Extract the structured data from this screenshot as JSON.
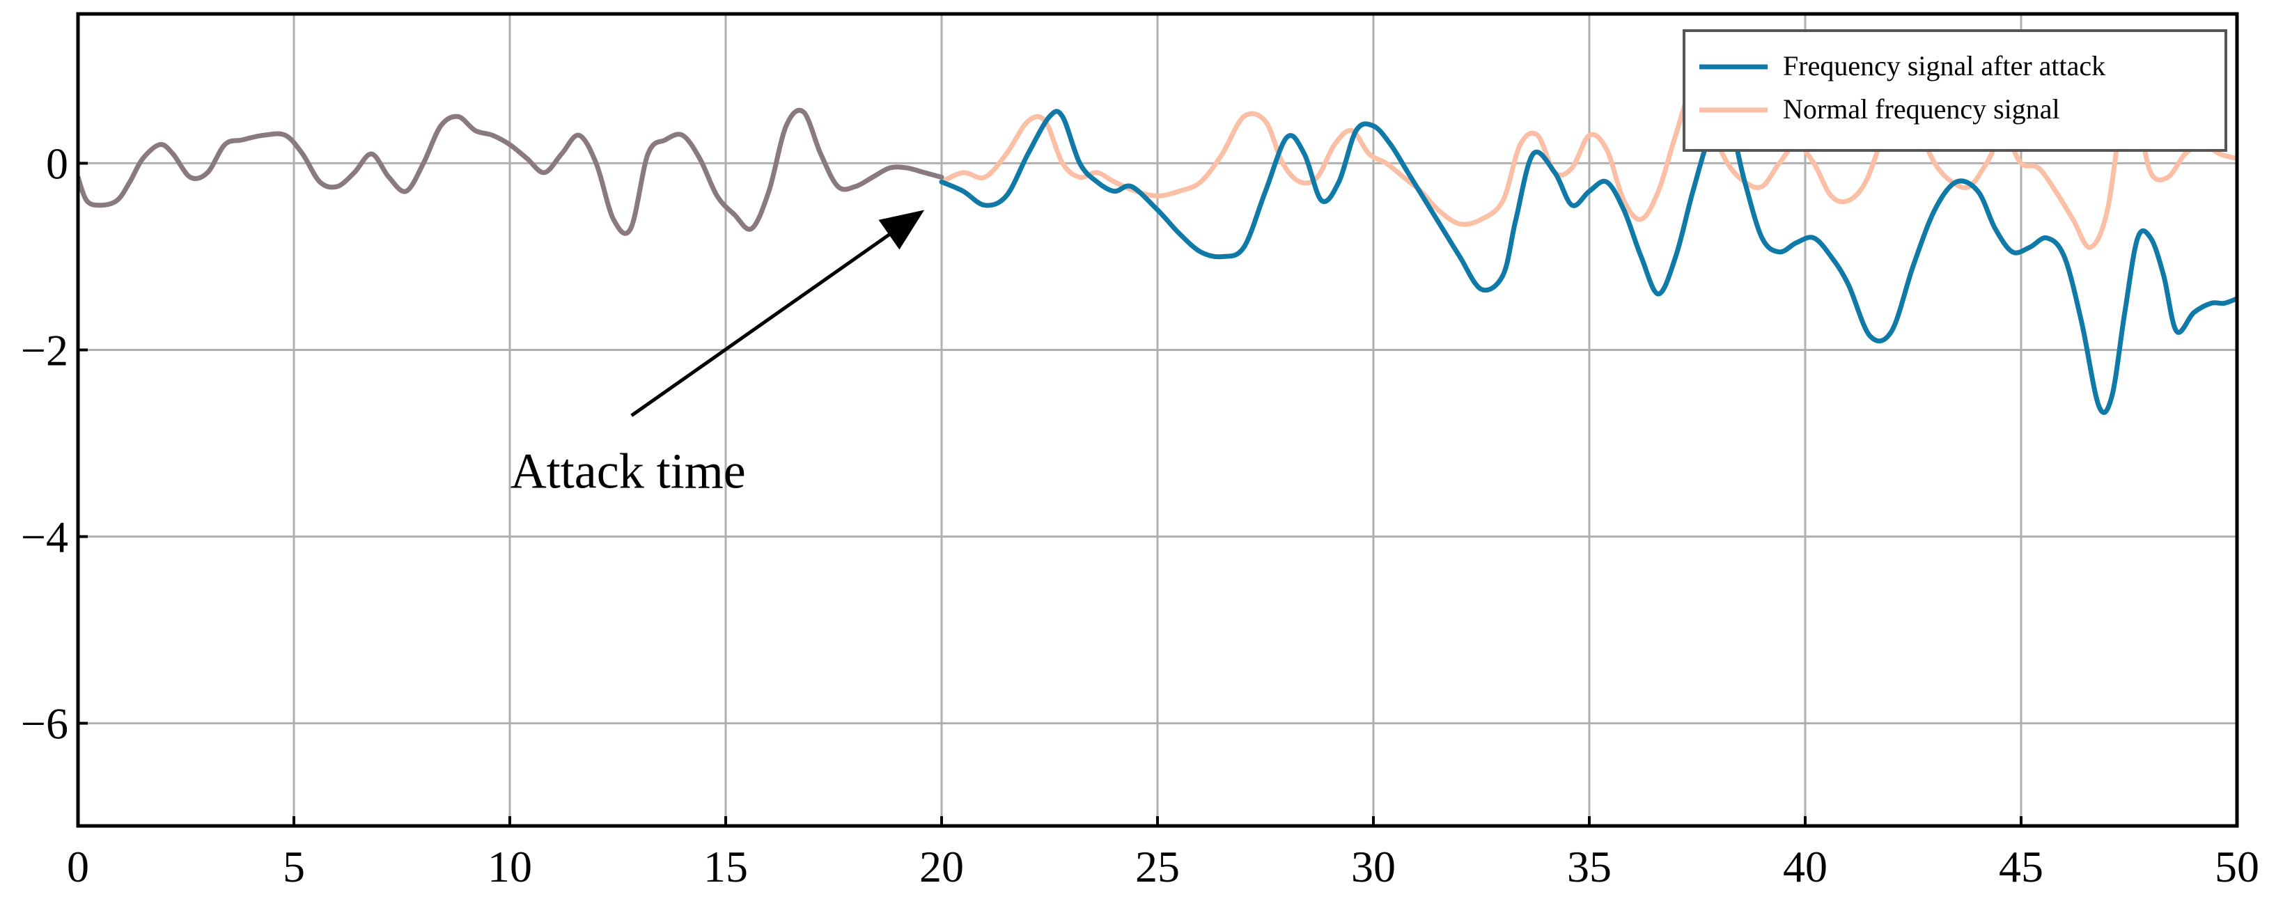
{
  "chart_data": {
    "type": "line",
    "xlim": [
      0,
      50
    ],
    "ylim": [
      -7.1,
      1.6
    ],
    "x_ticks": [
      0,
      5,
      10,
      15,
      20,
      25,
      30,
      35,
      40,
      45,
      50
    ],
    "y_ticks": [
      0,
      -2,
      -4,
      -6
    ],
    "x_tick_labels": [
      "0",
      "5",
      "10",
      "15",
      "20",
      "25",
      "30",
      "35",
      "40",
      "45",
      "50"
    ],
    "y_tick_labels": [
      "0",
      "−2",
      "−4",
      "−6"
    ],
    "grid": true,
    "legend_position": "top-right",
    "annotation": {
      "text": "Attack time",
      "x": 19.6,
      "y": -0.5,
      "text_x": 10.4,
      "text_y": -3.3
    },
    "series": [
      {
        "name": "Frequency signal after attack",
        "color": "#0f79a8",
        "x": [
          20.0,
          20.5,
          21.0,
          21.5,
          22.0,
          22.5,
          22.8,
          23.2,
          23.6,
          24.0,
          24.4,
          25.0,
          25.5,
          26.0,
          26.5,
          27.0,
          27.5,
          28.0,
          28.4,
          28.8,
          29.2,
          29.6,
          30.0,
          30.4,
          30.8,
          31.2,
          31.6,
          32.0,
          32.5,
          33.0,
          33.3,
          33.7,
          34.2,
          34.6,
          35.0,
          35.4,
          35.8,
          36.2,
          36.6,
          37.0,
          37.4,
          37.8,
          38.2,
          38.6,
          39.0,
          39.4,
          39.8,
          40.2,
          40.6,
          41.0,
          41.5,
          42.0,
          42.5,
          43.0,
          43.5,
          44.0,
          44.4,
          44.8,
          45.2,
          45.6,
          46.0,
          46.4,
          46.8,
          47.1,
          47.4,
          47.7,
          48.0,
          48.3,
          48.6,
          49.0,
          49.4,
          49.7,
          50.0
        ],
        "y": [
          -0.2,
          -0.3,
          -0.45,
          -0.35,
          0.1,
          0.5,
          0.5,
          0.0,
          -0.2,
          -0.3,
          -0.25,
          -0.5,
          -0.75,
          -0.95,
          -1.0,
          -0.9,
          -0.3,
          0.28,
          0.1,
          -0.4,
          -0.2,
          0.35,
          0.4,
          0.2,
          -0.1,
          -0.4,
          -0.7,
          -1.0,
          -1.35,
          -1.2,
          -0.6,
          0.1,
          -0.1,
          -0.45,
          -0.3,
          -0.2,
          -0.5,
          -1.0,
          -1.4,
          -1.0,
          -0.3,
          0.3,
          0.5,
          -0.2,
          -0.8,
          -0.95,
          -0.85,
          -0.8,
          -1.0,
          -1.3,
          -1.85,
          -1.8,
          -1.1,
          -0.5,
          -0.2,
          -0.3,
          -0.7,
          -0.95,
          -0.9,
          -0.8,
          -1.0,
          -1.7,
          -2.6,
          -2.5,
          -1.6,
          -0.8,
          -0.8,
          -1.2,
          -1.8,
          -1.6,
          -1.5,
          -1.5,
          -1.45
        ]
      },
      {
        "name": "Normal frequency signal",
        "color": "#fbbfa6",
        "x": [
          20.0,
          20.5,
          21.0,
          21.5,
          22.0,
          22.4,
          22.8,
          23.2,
          23.6,
          24.0,
          24.5,
          25.0,
          25.5,
          26.0,
          26.5,
          27.0,
          27.5,
          27.9,
          28.3,
          28.7,
          29.1,
          29.5,
          29.9,
          30.3,
          30.7,
          31.1,
          31.5,
          32.0,
          32.5,
          33.0,
          33.4,
          33.8,
          34.2,
          34.6,
          35.0,
          35.4,
          35.8,
          36.2,
          36.6,
          37.0,
          37.4,
          37.8,
          38.2,
          38.6,
          39.0,
          39.4,
          39.8,
          40.2,
          40.6,
          41.0,
          41.4,
          41.8,
          42.2,
          42.6,
          43.0,
          43.4,
          43.8,
          44.2,
          44.6,
          45.0,
          45.4,
          45.8,
          46.2,
          46.6,
          47.0,
          47.4,
          47.7,
          48.0,
          48.4,
          48.8,
          49.2,
          49.6,
          50.0
        ],
        "y": [
          -0.2,
          -0.1,
          -0.15,
          0.1,
          0.45,
          0.45,
          0.0,
          -0.15,
          -0.1,
          -0.2,
          -0.3,
          -0.35,
          -0.3,
          -0.2,
          0.1,
          0.5,
          0.45,
          0.0,
          -0.2,
          -0.15,
          0.2,
          0.35,
          0.1,
          0.0,
          -0.15,
          -0.3,
          -0.5,
          -0.65,
          -0.6,
          -0.4,
          0.2,
          0.3,
          -0.1,
          -0.05,
          0.3,
          0.15,
          -0.4,
          -0.6,
          -0.3,
          0.3,
          0.8,
          0.4,
          0.0,
          -0.2,
          -0.25,
          0.0,
          0.2,
          0.0,
          -0.35,
          -0.4,
          -0.2,
          0.3,
          0.8,
          0.4,
          0.0,
          -0.2,
          -0.25,
          0.0,
          0.3,
          0.0,
          -0.05,
          -0.3,
          -0.6,
          -0.9,
          -0.5,
          0.7,
          0.5,
          -0.1,
          -0.15,
          0.1,
          0.2,
          0.1,
          0.05
        ]
      },
      {
        "color": "#8a7a7f",
        "x": [
          0.0,
          0.2,
          0.5,
          0.9,
          1.2,
          1.5,
          1.9,
          2.2,
          2.6,
          3.0,
          3.4,
          3.8,
          4.3,
          4.8,
          5.2,
          5.6,
          6.0,
          6.4,
          6.8,
          7.2,
          7.6,
          8.0,
          8.4,
          8.8,
          9.2,
          9.6,
          10.0,
          10.4,
          10.8,
          11.2,
          11.6,
          12.0,
          12.4,
          12.8,
          13.2,
          13.6,
          14.0,
          14.4,
          14.8,
          15.2,
          15.6,
          16.0,
          16.4,
          16.8,
          17.2,
          17.6,
          18.0,
          18.4,
          18.8,
          19.2,
          19.6,
          20.0
        ],
        "y": [
          -0.15,
          -0.4,
          -0.45,
          -0.4,
          -0.2,
          0.05,
          0.2,
          0.1,
          -0.15,
          -0.1,
          0.2,
          0.25,
          0.3,
          0.3,
          0.1,
          -0.2,
          -0.25,
          -0.1,
          0.1,
          -0.15,
          -0.3,
          0.0,
          0.4,
          0.5,
          0.35,
          0.3,
          0.2,
          0.05,
          -0.1,
          0.1,
          0.3,
          0.0,
          -0.6,
          -0.7,
          0.1,
          0.25,
          0.3,
          0.05,
          -0.35,
          -0.55,
          -0.7,
          -0.3,
          0.4,
          0.55,
          0.1,
          -0.25,
          -0.25,
          -0.15,
          -0.05,
          -0.05,
          -0.1,
          -0.15
        ]
      }
    ]
  }
}
